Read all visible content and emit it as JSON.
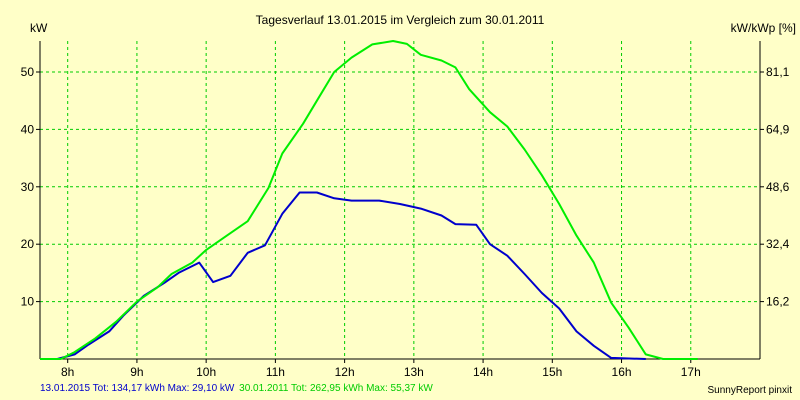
{
  "chart_data": {
    "type": "line",
    "title": "Tagesverlauf 13.01.2015 im Vergleich zum 30.01.2011",
    "ylabel_left": "kW",
    "ylabel_right": "kW/kWp [%]",
    "x_ticks": [
      "8h",
      "9h",
      "10h",
      "11h",
      "12h",
      "13h",
      "14h",
      "15h",
      "16h",
      "17h"
    ],
    "xlim": [
      7.6,
      18.0
    ],
    "ylim": [
      0,
      55.4
    ],
    "y_ticks": [
      10,
      20,
      30,
      40,
      50
    ],
    "y_tick_labels": [
      "10",
      "20",
      "30",
      "40",
      "50"
    ],
    "right_ticks": [
      {
        "at": 10,
        "label": "16,2"
      },
      {
        "at": 20,
        "label": "32,4"
      },
      {
        "at": 30,
        "label": "48,6"
      },
      {
        "at": 40,
        "label": "64,9"
      },
      {
        "at": 50,
        "label": "81,1"
      }
    ],
    "grid": true,
    "series": [
      {
        "name": "13.01.2015",
        "color": "#0000cc",
        "points": [
          [
            7.85,
            0.0
          ],
          [
            8.1,
            0.8
          ],
          [
            8.3,
            2.5
          ],
          [
            8.6,
            4.8
          ],
          [
            8.8,
            7.5
          ],
          [
            9.1,
            11.0
          ],
          [
            9.4,
            13.3
          ],
          [
            9.6,
            15.0
          ],
          [
            9.9,
            16.8
          ],
          [
            10.1,
            13.4
          ],
          [
            10.35,
            14.5
          ],
          [
            10.6,
            18.5
          ],
          [
            10.85,
            19.8
          ],
          [
            11.1,
            25.3
          ],
          [
            11.35,
            29.0
          ],
          [
            11.6,
            29.0
          ],
          [
            11.85,
            28.0
          ],
          [
            12.1,
            27.6
          ],
          [
            12.5,
            27.6
          ],
          [
            12.8,
            27.0
          ],
          [
            13.1,
            26.2
          ],
          [
            13.4,
            25.0
          ],
          [
            13.6,
            23.5
          ],
          [
            13.9,
            23.4
          ],
          [
            14.1,
            20.0
          ],
          [
            14.35,
            18.0
          ],
          [
            14.6,
            14.8
          ],
          [
            14.85,
            11.5
          ],
          [
            15.1,
            8.8
          ],
          [
            15.35,
            4.8
          ],
          [
            15.6,
            2.3
          ],
          [
            15.85,
            0.2
          ],
          [
            16.35,
            0.0
          ]
        ]
      },
      {
        "name": "30.01.2011",
        "color": "#00ee00",
        "points": [
          [
            7.6,
            0.0
          ],
          [
            7.9,
            0.0
          ],
          [
            8.1,
            1.2
          ],
          [
            8.4,
            3.6
          ],
          [
            8.7,
            6.5
          ],
          [
            9.0,
            10.0
          ],
          [
            9.3,
            12.5
          ],
          [
            9.5,
            14.8
          ],
          [
            9.8,
            16.8
          ],
          [
            10.0,
            19.0
          ],
          [
            10.3,
            21.5
          ],
          [
            10.6,
            24.0
          ],
          [
            10.9,
            29.8
          ],
          [
            11.1,
            35.8
          ],
          [
            11.4,
            41.0
          ],
          [
            11.6,
            45.0
          ],
          [
            11.85,
            50.0
          ],
          [
            12.1,
            52.5
          ],
          [
            12.4,
            54.8
          ],
          [
            12.7,
            55.4
          ],
          [
            12.9,
            54.9
          ],
          [
            13.1,
            53.0
          ],
          [
            13.4,
            52.0
          ],
          [
            13.6,
            50.8
          ],
          [
            13.8,
            47.0
          ],
          [
            14.1,
            43.0
          ],
          [
            14.35,
            40.5
          ],
          [
            14.6,
            36.5
          ],
          [
            14.85,
            32.0
          ],
          [
            15.1,
            27.0
          ],
          [
            15.35,
            21.5
          ],
          [
            15.6,
            16.8
          ],
          [
            15.85,
            9.8
          ],
          [
            16.1,
            5.5
          ],
          [
            16.35,
            0.8
          ],
          [
            16.6,
            0.0
          ],
          [
            17.1,
            0.0
          ]
        ]
      }
    ],
    "footer": [
      {
        "text": "13.01.2015 Tot: 134,17 kWh Max: 29,10 kW",
        "color": "#0000cc"
      },
      {
        "text": "30.01.2011 Tot: 262,95 kWh Max: 55,37 kW",
        "color": "#00cc00"
      }
    ],
    "credit": "SunnyReport pinxit"
  }
}
